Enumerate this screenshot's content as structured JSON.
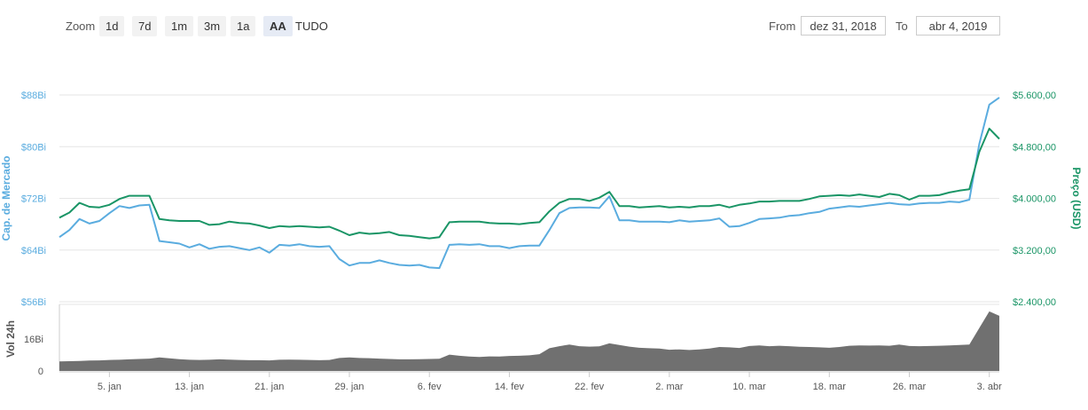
{
  "toolbar": {
    "zoom_label": "Zoom",
    "zoom_buttons": [
      "1d",
      "7d",
      "1m",
      "3m",
      "1a",
      "AA"
    ],
    "zoom_all": "TUDO",
    "from_label": "From",
    "from_value": "dez 31, 2018",
    "to_label": "To",
    "to_value": "abr 4, 2019"
  },
  "colors": {
    "market_cap": "#5aacdf",
    "price": "#1a9566",
    "volume": "#707070",
    "grid": "#e6e6e6"
  },
  "chart_data": {
    "type": "line",
    "x": [
      "2018-12-31",
      "2019-01-01",
      "2019-01-02",
      "2019-01-03",
      "2019-01-04",
      "2019-01-05",
      "2019-01-06",
      "2019-01-07",
      "2019-01-08",
      "2019-01-09",
      "2019-01-10",
      "2019-01-11",
      "2019-01-12",
      "2019-01-13",
      "2019-01-14",
      "2019-01-15",
      "2019-01-16",
      "2019-01-17",
      "2019-01-18",
      "2019-01-19",
      "2019-01-20",
      "2019-01-21",
      "2019-01-22",
      "2019-01-23",
      "2019-01-24",
      "2019-01-25",
      "2019-01-26",
      "2019-01-27",
      "2019-01-28",
      "2019-01-29",
      "2019-01-30",
      "2019-01-31",
      "2019-02-01",
      "2019-02-02",
      "2019-02-03",
      "2019-02-04",
      "2019-02-05",
      "2019-02-06",
      "2019-02-07",
      "2019-02-08",
      "2019-02-09",
      "2019-02-10",
      "2019-02-11",
      "2019-02-12",
      "2019-02-13",
      "2019-02-14",
      "2019-02-15",
      "2019-02-16",
      "2019-02-17",
      "2019-02-18",
      "2019-02-19",
      "2019-02-20",
      "2019-02-21",
      "2019-02-22",
      "2019-02-23",
      "2019-02-24",
      "2019-02-25",
      "2019-02-26",
      "2019-02-27",
      "2019-02-28",
      "2019-03-01",
      "2019-03-02",
      "2019-03-03",
      "2019-03-04",
      "2019-03-05",
      "2019-03-06",
      "2019-03-07",
      "2019-03-08",
      "2019-03-09",
      "2019-03-10",
      "2019-03-11",
      "2019-03-12",
      "2019-03-13",
      "2019-03-14",
      "2019-03-15",
      "2019-03-16",
      "2019-03-17",
      "2019-03-18",
      "2019-03-19",
      "2019-03-20",
      "2019-03-21",
      "2019-03-22",
      "2019-03-23",
      "2019-03-24",
      "2019-03-25",
      "2019-03-26",
      "2019-03-27",
      "2019-03-28",
      "2019-03-29",
      "2019-03-30",
      "2019-03-31",
      "2019-04-01",
      "2019-04-02",
      "2019-04-03",
      "2019-04-04"
    ],
    "series": [
      {
        "name": "Cap. de Mercado",
        "axis": "left",
        "values": [
          66.0,
          67.1,
          68.8,
          68.1,
          68.5,
          69.7,
          70.8,
          70.5,
          70.9,
          71.0,
          65.4,
          65.2,
          65.0,
          64.4,
          64.9,
          64.2,
          64.5,
          64.6,
          64.3,
          64.0,
          64.4,
          63.6,
          64.8,
          64.7,
          64.9,
          64.6,
          64.5,
          64.6,
          62.6,
          61.6,
          62.0,
          62.0,
          62.4,
          62.0,
          61.7,
          61.6,
          61.7,
          61.3,
          61.2,
          64.8,
          64.9,
          64.8,
          64.9,
          64.6,
          64.6,
          64.3,
          64.6,
          64.7,
          64.7,
          67.1,
          69.7,
          70.5,
          70.6,
          70.6,
          70.5,
          72.3,
          68.6,
          68.6,
          68.4,
          68.4,
          68.4,
          68.3,
          68.6,
          68.4,
          68.5,
          68.6,
          68.9,
          67.6,
          67.7,
          68.2,
          68.8,
          68.9,
          69.0,
          69.3,
          69.4,
          69.7,
          69.9,
          70.4,
          70.6,
          70.8,
          70.7,
          70.9,
          71.1,
          71.3,
          71.1,
          71.0,
          71.2,
          71.3,
          71.3,
          71.5,
          71.4,
          71.8,
          80.4,
          86.5,
          87.6
        ]
      },
      {
        "name": "Preço (USD)",
        "axis": "right",
        "values": [
          3700,
          3780,
          3930,
          3870,
          3860,
          3900,
          3990,
          4040,
          4040,
          4040,
          3680,
          3660,
          3650,
          3650,
          3650,
          3590,
          3600,
          3640,
          3620,
          3610,
          3580,
          3540,
          3570,
          3560,
          3570,
          3560,
          3550,
          3560,
          3500,
          3430,
          3470,
          3450,
          3460,
          3480,
          3430,
          3420,
          3400,
          3380,
          3400,
          3630,
          3640,
          3640,
          3640,
          3620,
          3610,
          3610,
          3600,
          3620,
          3630,
          3800,
          3930,
          3990,
          3990,
          3960,
          4010,
          4100,
          3880,
          3880,
          3860,
          3870,
          3880,
          3860,
          3870,
          3860,
          3880,
          3880,
          3900,
          3860,
          3900,
          3920,
          3950,
          3950,
          3960,
          3960,
          3960,
          3990,
          4030,
          4040,
          4050,
          4040,
          4060,
          4040,
          4020,
          4070,
          4050,
          3980,
          4040,
          4040,
          4050,
          4090,
          4120,
          4140,
          4720,
          5080,
          4920
        ]
      }
    ],
    "volume": {
      "name": "Vol 24h",
      "values": [
        4.8,
        4.9,
        5.0,
        5.2,
        5.3,
        5.5,
        5.6,
        5.8,
        6.0,
        6.2,
        6.8,
        6.3,
        5.9,
        5.6,
        5.5,
        5.6,
        5.8,
        5.7,
        5.5,
        5.4,
        5.4,
        5.3,
        5.6,
        5.7,
        5.6,
        5.5,
        5.4,
        5.5,
        6.5,
        6.8,
        6.5,
        6.4,
        6.2,
        6.0,
        5.8,
        5.8,
        5.9,
        6.0,
        6.1,
        8.2,
        7.6,
        7.2,
        7.0,
        7.3,
        7.2,
        7.5,
        7.6,
        7.8,
        8.4,
        11.4,
        12.4,
        13.2,
        12.4,
        12.2,
        12.3,
        13.8,
        13.0,
        12.2,
        11.6,
        11.4,
        11.2,
        10.6,
        10.8,
        10.5,
        10.8,
        11.2,
        12.0,
        11.8,
        11.5,
        12.5,
        12.8,
        12.4,
        12.6,
        12.4,
        12.1,
        12.0,
        11.8,
        11.6,
        12.0,
        12.6,
        12.8,
        12.7,
        12.8,
        12.6,
        13.2,
        12.5,
        12.4,
        12.5,
        12.6,
        12.8,
        13.0,
        13.2,
        21.5,
        29.8,
        27.6
      ]
    },
    "left_axis": {
      "label": "Cap. de Mercado",
      "ylim": [
        56,
        88
      ],
      "ticks": [
        "$56Bi",
        "$64Bi",
        "$72Bi",
        "$80Bi",
        "$88Bi"
      ],
      "tick_values": [
        56,
        64,
        72,
        80,
        88
      ]
    },
    "right_axis": {
      "label": "Preço (USD)",
      "ylim": [
        2400,
        5600
      ],
      "ticks": [
        "$2.400,00",
        "$3.200,00",
        "$4.000,00",
        "$4.800,00",
        "$5.600,00"
      ],
      "tick_values": [
        2400,
        3200,
        4000,
        4800,
        5600
      ]
    },
    "volume_axis": {
      "label": "Vol 24h",
      "ticks": [
        "0",
        "16Bi"
      ],
      "tick_values": [
        0,
        16
      ]
    },
    "x_ticks": [
      {
        "label": "5. jan",
        "date": "2019-01-05"
      },
      {
        "label": "13. jan",
        "date": "2019-01-13"
      },
      {
        "label": "21. jan",
        "date": "2019-01-21"
      },
      {
        "label": "29. jan",
        "date": "2019-01-29"
      },
      {
        "label": "6. fev",
        "date": "2019-02-06"
      },
      {
        "label": "14. fev",
        "date": "2019-02-14"
      },
      {
        "label": "22. fev",
        "date": "2019-02-22"
      },
      {
        "label": "2. mar",
        "date": "2019-03-02"
      },
      {
        "label": "10. mar",
        "date": "2019-03-10"
      },
      {
        "label": "18. mar",
        "date": "2019-03-18"
      },
      {
        "label": "26. mar",
        "date": "2019-03-26"
      },
      {
        "label": "3. abr",
        "date": "2019-04-03"
      }
    ],
    "grid": true
  }
}
